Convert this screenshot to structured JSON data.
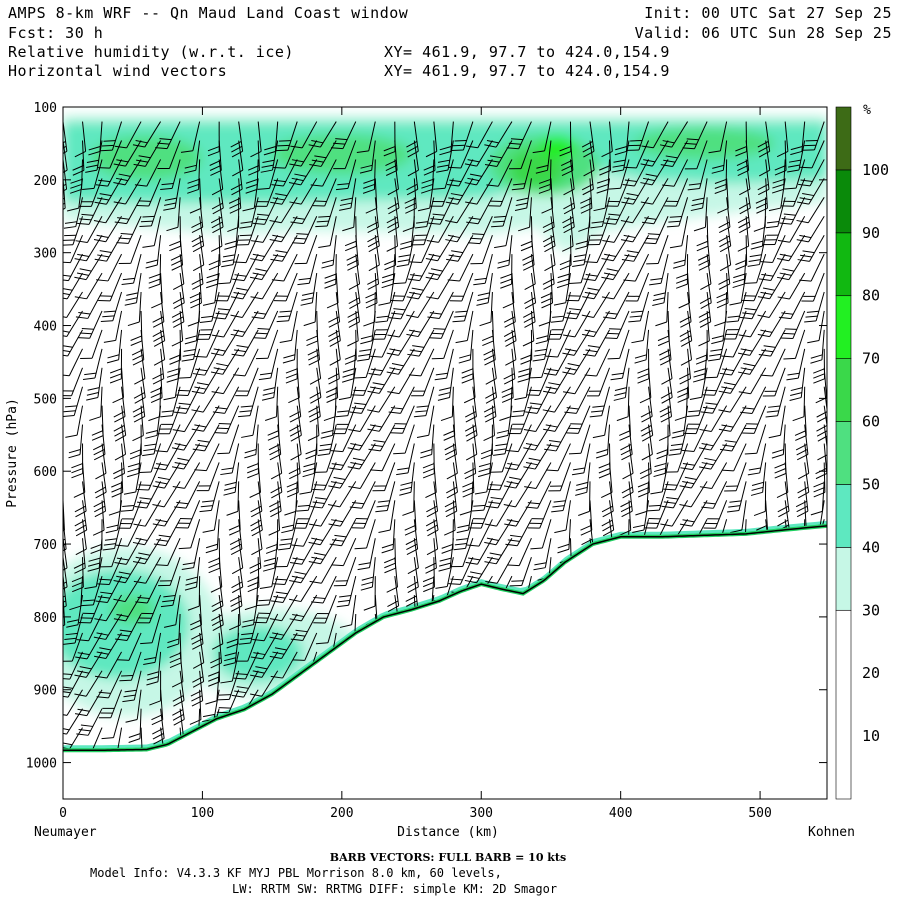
{
  "header": {
    "title": "AMPS 8-km WRF -- Qn Maud Land Coast window",
    "init": "Init: 00 UTC Sat 27 Sep 25",
    "fcst": "Fcst:   30 h",
    "valid": "Valid: 06 UTC Sun 28 Sep 25",
    "field1": "Relative humidity (w.r.t. ice)",
    "field1_xy": "XY= 461.9, 97.7 to 424.0,154.9",
    "field2": "Horizontal wind vectors",
    "field2_xy": "XY= 461.9, 97.7 to 424.0,154.9"
  },
  "footer": {
    "barb_caption": "BARB VECTORS:  FULL BARB = 10 kts",
    "model_info_1": "Model Info: V4.3.3   KF      MYJ PBL  Morrison          8.0 km,  60 levels,",
    "model_info_2": "LW: RRTM SW: RRTMG   DIFF: simple KM: 2D Smagor"
  },
  "colors": {
    "c30_40": "#c6f7e6",
    "c40_50": "#5ee8c0",
    "c50_60": "#4fe080",
    "c60_70": "#3ad84a",
    "c70_80": "#22f022",
    "c80_90": "#11b811",
    "c90_100": "#0a8a0a",
    "c100": "#3d6b16",
    "terrain": "#000000",
    "barb": "#000000"
  },
  "chart_data": {
    "type": "cross-section",
    "title": "Relative humidity (w.r.t. ice) and horizontal wind vectors",
    "xlabel": "Distance (km)",
    "ylabel": "Pressure (hPa)",
    "xlim": [
      0,
      548
    ],
    "ylim": [
      1050,
      100
    ],
    "x_ticks": [
      0,
      100,
      200,
      300,
      400,
      500
    ],
    "y_ticks": [
      100,
      200,
      300,
      400,
      500,
      600,
      700,
      800,
      900,
      1000
    ],
    "x_start_label": "Neumayer",
    "x_end_label": "Kohnen",
    "colorbar": {
      "unit": "%",
      "ticks": [
        10,
        20,
        30,
        40,
        50,
        60,
        70,
        80,
        90,
        100
      ],
      "levels": [
        {
          "from": 0,
          "to": 30,
          "color": "#ffffff"
        },
        {
          "from": 30,
          "to": 40,
          "color": "#c6f7e6"
        },
        {
          "from": 40,
          "to": 50,
          "color": "#5ee8c0"
        },
        {
          "from": 50,
          "to": 60,
          "color": "#4fe080"
        },
        {
          "from": 60,
          "to": 70,
          "color": "#3ad84a"
        },
        {
          "from": 70,
          "to": 80,
          "color": "#22f022"
        },
        {
          "from": 80,
          "to": 90,
          "color": "#11b811"
        },
        {
          "from": 90,
          "to": 100,
          "color": "#0a8a0a"
        },
        {
          "from": 100,
          "to": 110,
          "color": "#3d6b16"
        }
      ]
    },
    "surface_pressure": {
      "distance_km": [
        0,
        30,
        60,
        75,
        95,
        110,
        130,
        150,
        170,
        190,
        210,
        230,
        250,
        270,
        285,
        300,
        315,
        330,
        345,
        360,
        380,
        400,
        430,
        460,
        490,
        520,
        548
      ],
      "pressure_hpa": [
        983,
        983,
        982,
        975,
        955,
        940,
        927,
        906,
        878,
        850,
        822,
        800,
        790,
        778,
        765,
        755,
        762,
        768,
        750,
        725,
        700,
        690,
        690,
        688,
        686,
        680,
        675
      ]
    },
    "wind_barb_columns_km": [
      0,
      14,
      28,
      42,
      56,
      70,
      84,
      98,
      112,
      126,
      140,
      154,
      168,
      182,
      196,
      210,
      224,
      238,
      252,
      266,
      280,
      294,
      308,
      322,
      336,
      350,
      364,
      378,
      392,
      406,
      420,
      434,
      448,
      462,
      476,
      490,
      504,
      518,
      532,
      546
    ],
    "barb_unit": "FULL BARB = 10 kts",
    "rh_features": [
      {
        "name": "upper-tropospheric moist layer",
        "rh_pct": "30-60",
        "pressure_hpa": [
          120,
          300
        ],
        "distance_km": [
          0,
          548
        ]
      },
      {
        "name": "moist maximum",
        "rh_pct": "60-70",
        "pressure_hpa": [
          150,
          220
        ],
        "distance_km": [
          310,
          380
        ]
      },
      {
        "name": "boundary-layer moist region",
        "rh_pct": "30-50",
        "pressure_hpa": [
          750,
          980
        ],
        "distance_km": [
          0,
          200
        ]
      }
    ]
  }
}
